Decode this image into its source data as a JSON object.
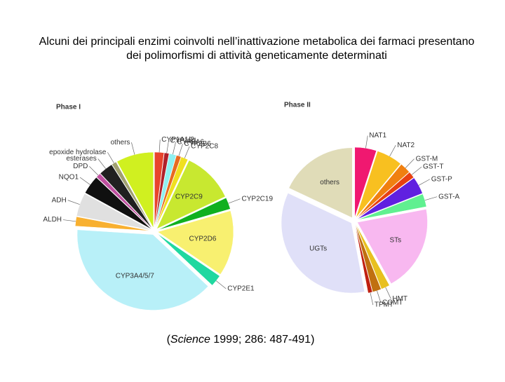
{
  "title": [
    "Alcuni dei principali enzimi coinvolti nell’inattivazione metabolica dei farmaci presentano",
    "dei polimorfismi di attività geneticamente determinati"
  ],
  "chart_data": [
    {
      "type": "pie",
      "title": "Phase I",
      "categories": [
        "CYP1A1/2",
        "CYP1B1",
        "CYP2A6",
        "CYP2B6",
        "CYP2C8",
        "CYP2C9",
        "CYP2C19",
        "CYP2D6",
        "CYP2E1",
        "CYP3A4/5/7",
        "ALDH",
        "ADH",
        "NQO1",
        "DPD",
        "esterases",
        "epoxide hydrolase",
        "others"
      ],
      "values": [
        2,
        1,
        1.5,
        1,
        1.5,
        11,
        2.5,
        14,
        2.5,
        39,
        2,
        5,
        4,
        1,
        3,
        1,
        8
      ],
      "colors": [
        "#e8442c",
        "#b0202a",
        "#8ff0f0",
        "#e86a20",
        "#f0e020",
        "#c8e830",
        "#10b020",
        "#f8f070",
        "#20d8a0",
        "#b8f0f8",
        "#f8b030",
        "#e0e0e0",
        "#101010",
        "#c050a0",
        "#202020",
        "#a0a070",
        "#d0f020"
      ]
    },
    {
      "type": "pie",
      "title": "Phase II",
      "categories": [
        "NAT1",
        "NAT2",
        "GST-M",
        "GST-T",
        "GST-P",
        "GST-A",
        "STs",
        "HMT",
        "COMT",
        "TPMT",
        "UGTs",
        "others"
      ],
      "values": [
        5,
        6,
        2.5,
        1.5,
        4,
        3,
        20,
        2,
        2,
        1,
        35,
        18
      ],
      "colors": [
        "#f01870",
        "#f8c020",
        "#f08010",
        "#e84010",
        "#6020e0",
        "#60f090",
        "#f8b8f0",
        "#e8c020",
        "#c07010",
        "#c02010",
        "#e0e0f8",
        "#e0dcb8"
      ]
    }
  ],
  "source": [
    "(",
    "Science",
    " 1999; 286: 487-491)"
  ]
}
